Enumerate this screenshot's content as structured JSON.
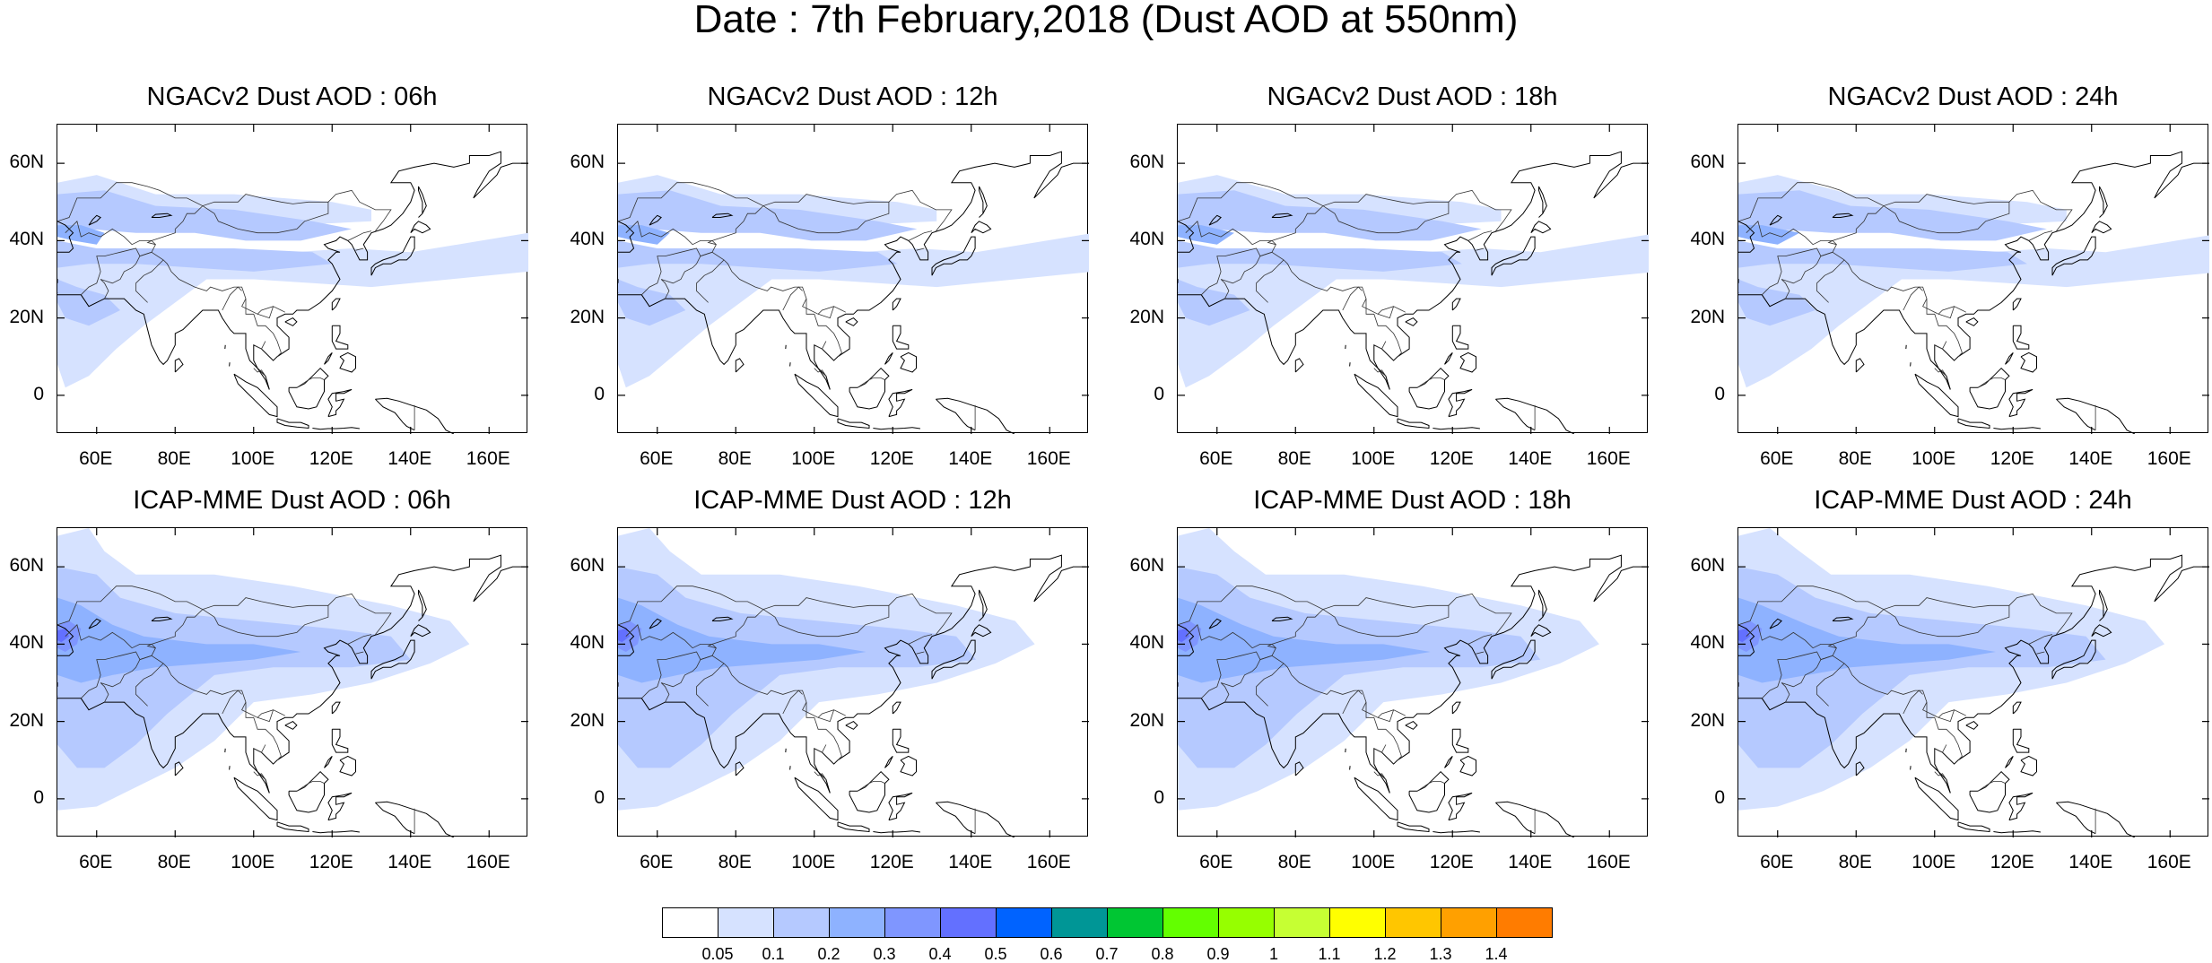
{
  "main_title": "Date : 7th February,2018 (Dust AOD at 550nm)",
  "axes": {
    "x_tick_labels": [
      "60E",
      "80E",
      "100E",
      "120E",
      "140E",
      "160E"
    ],
    "y_tick_labels": [
      "60N",
      "40N",
      "20N",
      "0"
    ],
    "lon_ticks": [
      60,
      80,
      100,
      120,
      140,
      160
    ],
    "lat_ticks": [
      60,
      40,
      20,
      0
    ],
    "lon_range": [
      50,
      170
    ],
    "lat_range": [
      -10,
      70
    ]
  },
  "panels": [
    {
      "title": "NGACv2 Dust AOD : 06h",
      "model": "NGACv2",
      "lead": "06h"
    },
    {
      "title": "NGACv2 Dust AOD : 12h",
      "model": "NGACv2",
      "lead": "12h"
    },
    {
      "title": "NGACv2 Dust AOD : 18h",
      "model": "NGACv2",
      "lead": "18h"
    },
    {
      "title": "NGACv2 Dust AOD : 24h",
      "model": "NGACv2",
      "lead": "24h"
    },
    {
      "title": "ICAP-MME Dust AOD : 06h",
      "model": "ICAP-MME",
      "lead": "06h"
    },
    {
      "title": "ICAP-MME Dust AOD : 12h",
      "model": "ICAP-MME",
      "lead": "12h"
    },
    {
      "title": "ICAP-MME Dust AOD : 18h",
      "model": "ICAP-MME",
      "lead": "18h"
    },
    {
      "title": "ICAP-MME Dust AOD : 24h",
      "model": "ICAP-MME",
      "lead": "24h"
    }
  ],
  "colorbar": {
    "labels": [
      "0.05",
      "0.1",
      "0.2",
      "0.3",
      "0.4",
      "0.5",
      "0.6",
      "0.7",
      "0.8",
      "0.9",
      "1",
      "1.1",
      "1.2",
      "1.3",
      "1.4"
    ],
    "colors": [
      "#ffffff",
      "#d6e2ff",
      "#b5c9ff",
      "#8eb2ff",
      "#7f96ff",
      "#6370ff",
      "#0063ff",
      "#009696",
      "#00c633",
      "#63ff00",
      "#96ff00",
      "#c6ff33",
      "#ffff00",
      "#ffc600",
      "#ffa000",
      "#ff7c00",
      "#ff1900"
    ]
  }
}
